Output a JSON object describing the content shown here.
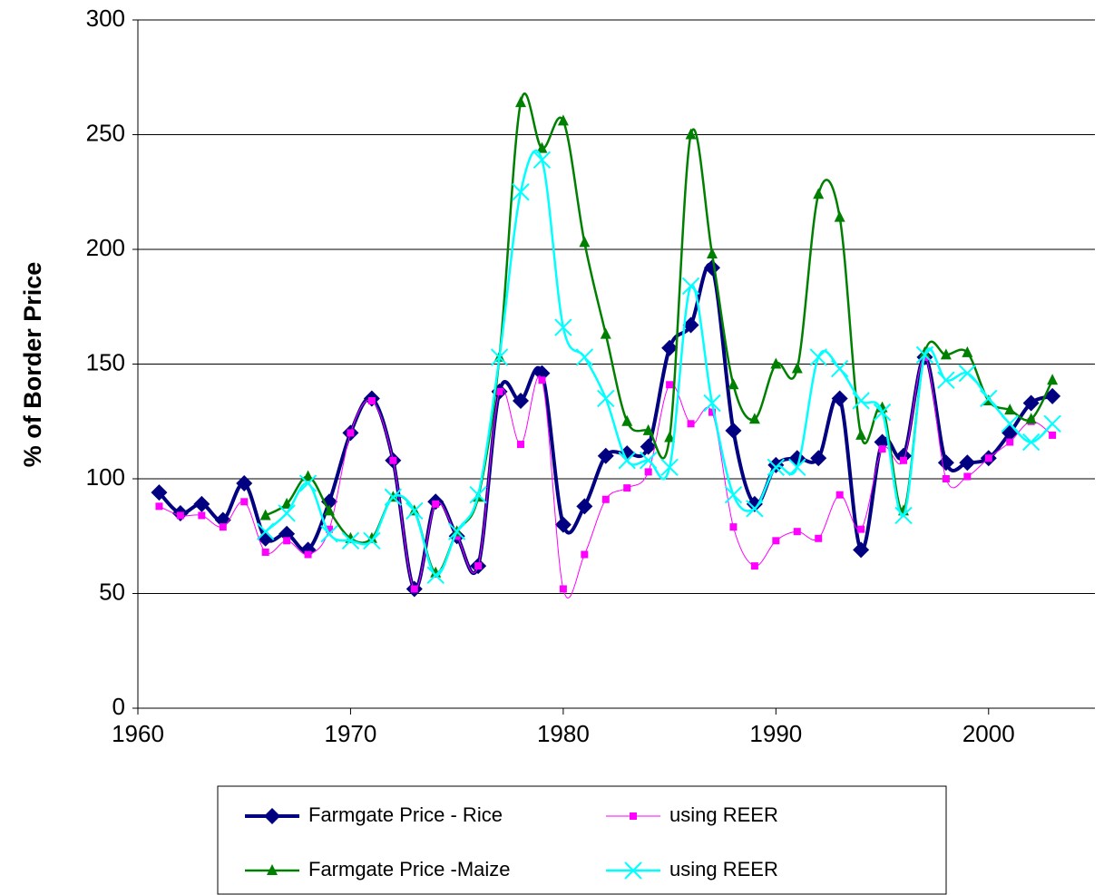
{
  "chart_data": {
    "type": "line",
    "ylabel": "% of Border Price",
    "xlim": [
      1960,
      2005
    ],
    "xticks": [
      1960,
      1970,
      1980,
      1990,
      2000
    ],
    "ylim": [
      0,
      300
    ],
    "yticks": [
      0,
      50,
      100,
      150,
      200,
      250,
      300
    ],
    "grid": true,
    "legend": "bottom",
    "series": [
      {
        "name": "Farmgate Price - Rice",
        "color": "#000080",
        "marker": "diamond",
        "x": [
          1961,
          1962,
          1963,
          1964,
          1965,
          1966,
          1967,
          1968,
          1969,
          1970,
          1971,
          1972,
          1973,
          1974,
          1975,
          1976,
          1977,
          1978,
          1979,
          1980,
          1981,
          1982,
          1983,
          1984,
          1985,
          1986,
          1987,
          1988,
          1989,
          1990,
          1991,
          1992,
          1993,
          1994,
          1995,
          1996,
          1997,
          1998,
          1999,
          2000,
          2001,
          2002,
          2003
        ],
        "values": [
          94,
          85,
          89,
          82,
          98,
          74,
          76,
          69,
          90,
          120,
          135,
          108,
          52,
          90,
          75,
          62,
          138,
          134,
          146,
          80,
          88,
          110,
          111,
          114,
          157,
          167,
          192,
          121,
          89,
          106,
          109,
          109,
          135,
          69,
          116,
          110,
          153,
          107,
          107,
          109,
          120,
          133,
          136
        ]
      },
      {
        "name": "using REER",
        "color": "#ff00ff",
        "marker": "square",
        "x": [
          1961,
          1962,
          1963,
          1964,
          1965,
          1966,
          1967,
          1968,
          1969,
          1970,
          1971,
          1972,
          1973,
          1974,
          1975,
          1976,
          1977,
          1978,
          1979,
          1980,
          1981,
          1982,
          1983,
          1984,
          1985,
          1986,
          1987,
          1988,
          1989,
          1990,
          1991,
          1992,
          1993,
          1994,
          1995,
          1996,
          1997,
          1998,
          1999,
          2000,
          2001,
          2002,
          2003
        ],
        "values": [
          88,
          84,
          84,
          79,
          90,
          68,
          73,
          67,
          78,
          120,
          134,
          108,
          52,
          89,
          75,
          62,
          138,
          115,
          143,
          52,
          67,
          91,
          96,
          103,
          141,
          124,
          129,
          79,
          62,
          73,
          77,
          74,
          93,
          78,
          113,
          108,
          153,
          100,
          101,
          109,
          116,
          125,
          119
        ]
      },
      {
        "name": "Farmgate Price -Maize",
        "color": "#008000",
        "marker": "triangle",
        "x": [
          1966,
          1967,
          1968,
          1969,
          1970,
          1971,
          1972,
          1973,
          1974,
          1975,
          1976,
          1977,
          1978,
          1979,
          1980,
          1981,
          1982,
          1983,
          1984,
          1985,
          1986,
          1987,
          1988,
          1989,
          1990,
          1991,
          1992,
          1993,
          1994,
          1995,
          1996,
          1997,
          1998,
          1999,
          2000,
          2001,
          2002,
          2003
        ],
        "values": [
          84,
          89,
          101,
          86,
          74,
          74,
          92,
          86,
          59,
          77,
          92,
          153,
          264,
          244,
          256,
          203,
          163,
          125,
          121,
          118,
          250,
          198,
          141,
          126,
          150,
          148,
          224,
          214,
          119,
          131,
          86,
          155,
          154,
          155,
          134,
          130,
          126,
          143
        ]
      },
      {
        "name": "using REER",
        "color": "#00ffff",
        "marker": "x",
        "x": [
          1966,
          1967,
          1968,
          1969,
          1970,
          1971,
          1972,
          1973,
          1974,
          1975,
          1976,
          1977,
          1978,
          1979,
          1980,
          1981,
          1982,
          1983,
          1984,
          1985,
          1986,
          1987,
          1988,
          1989,
          1990,
          1991,
          1992,
          1993,
          1994,
          1995,
          1996,
          1997,
          1998,
          1999,
          2000,
          2001,
          2002,
          2003
        ],
        "values": [
          77,
          85,
          98,
          76,
          73,
          73,
          92,
          86,
          58,
          77,
          93,
          153,
          225,
          239,
          166,
          153,
          135,
          108,
          108,
          105,
          184,
          133,
          93,
          87,
          105,
          105,
          153,
          148,
          134,
          129,
          84,
          154,
          143,
          146,
          135,
          124,
          116,
          124
        ]
      }
    ]
  }
}
